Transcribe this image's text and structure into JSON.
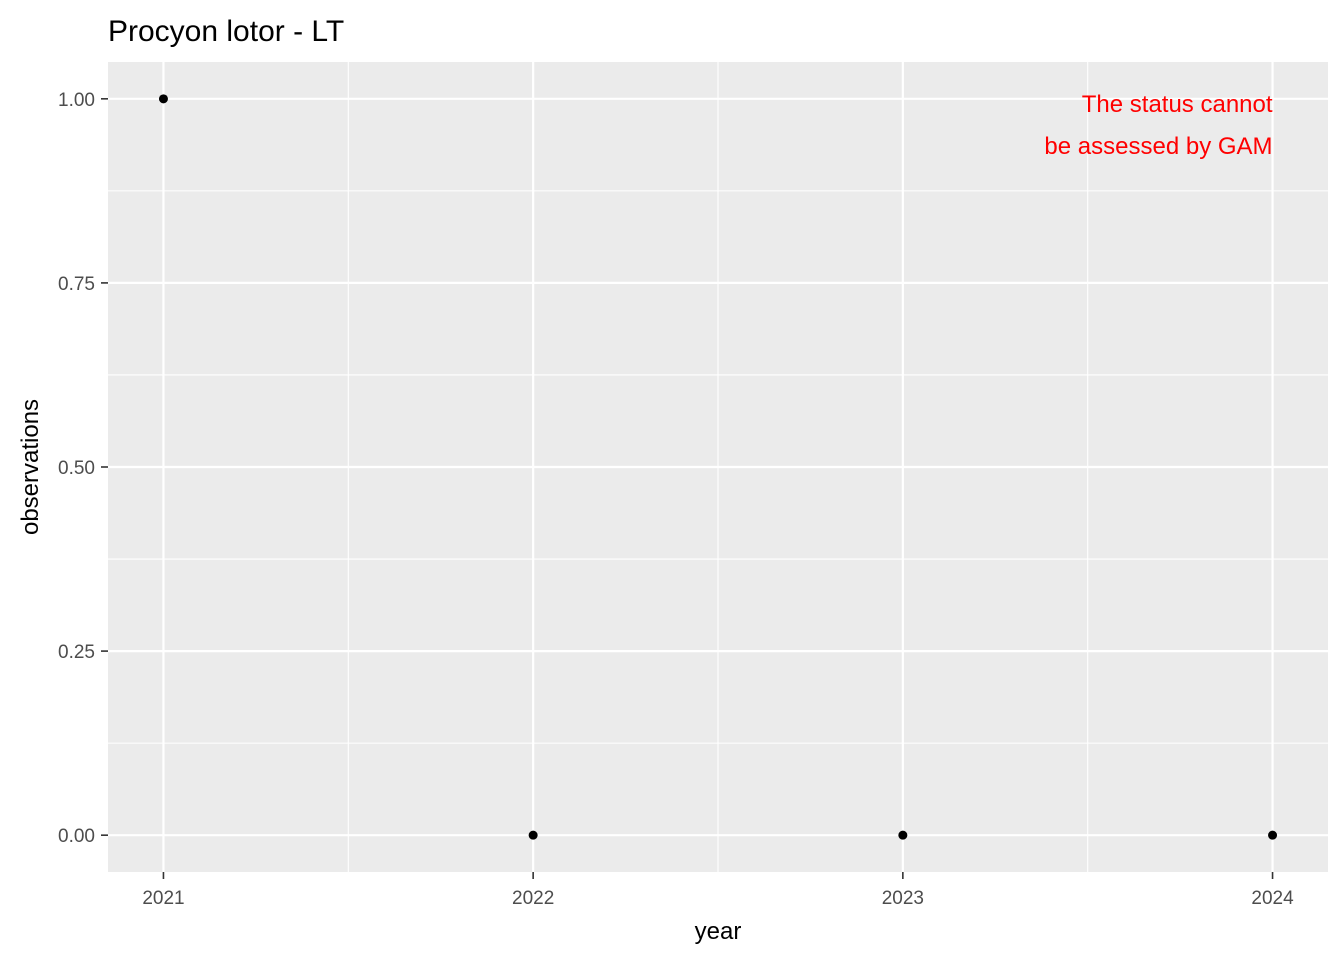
{
  "chart_data": {
    "type": "scatter",
    "title": "Procyon lotor - LT",
    "xlabel": "year",
    "ylabel": "observations",
    "x": [
      2021,
      2022,
      2023,
      2024
    ],
    "y": [
      1,
      0,
      0,
      0
    ],
    "xlim": [
      2020.85,
      2024.15
    ],
    "ylim": [
      -0.05,
      1.05
    ],
    "x_ticks": [
      2021,
      2022,
      2023,
      2024
    ],
    "x_tick_labels": [
      "2021",
      "2022",
      "2023",
      "2024"
    ],
    "y_ticks": [
      0,
      0.25,
      0.5,
      0.75,
      1
    ],
    "y_tick_labels": [
      "0.00",
      "0.25",
      "0.50",
      "0.75",
      "1.00"
    ],
    "grid": true,
    "annotation": {
      "lines": [
        "The status cannot",
        "be assessed by GAM"
      ],
      "color": "#ff0000",
      "placement": "top-right"
    },
    "colors": {
      "panel_background": "#ebebeb",
      "grid": "#ffffff",
      "point": "#000000",
      "tick": "#333333"
    }
  }
}
